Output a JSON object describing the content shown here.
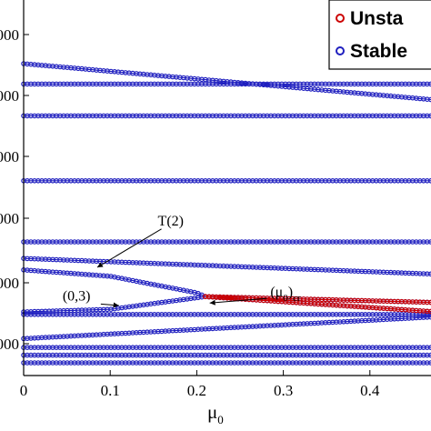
{
  "chart_data": {
    "type": "scatter",
    "title": "",
    "xlabel": "μ",
    "xlabel_subscript": "0",
    "ylabel": "",
    "xlim": [
      0,
      0.5
    ],
    "ylim": [
      -50,
      2900
    ],
    "x_ticks": [
      0,
      0.1,
      0.2,
      0.3,
      0.4
    ],
    "x_tick_labels": [
      "0",
      "0.1",
      "0.2",
      "0.3",
      "0.4"
    ],
    "y_ticks": [],
    "y_tick_labels": [
      "000",
      "000",
      "000",
      "000",
      "000",
      "000"
    ],
    "grid": false,
    "legend_position": "top-right",
    "legend": [
      {
        "label": "Unsta",
        "color": "#cc0000"
      },
      {
        "label": "Stable",
        "color": "#1f1fbf"
      }
    ],
    "series": [
      {
        "name": "Stable",
        "color": "#1f1fbf",
        "marker": "o",
        "curves": [
          {
            "x": [
              0,
              0.5
            ],
            "y": [
              2400,
              2100
            ]
          },
          {
            "x": [
              0,
              0.5
            ],
            "y": [
              2240,
              2240
            ]
          },
          {
            "x": [
              0,
              0.5
            ],
            "y": [
              1990,
              1990
            ]
          },
          {
            "x": [
              0,
              0.5
            ],
            "y": [
              1480,
              1480
            ]
          },
          {
            "x": [
              0,
              0.5
            ],
            "y": [
              1000,
              1000
            ]
          },
          {
            "x": [
              0,
              0.5
            ],
            "y": [
              870,
              740
            ]
          },
          {
            "x": [
              0,
              0.1,
              0.2,
              0.21
            ],
            "y": [
              780,
              730,
              600,
              570
            ]
          },
          {
            "x": [
              0.21,
              0.5
            ],
            "y": [
              570,
              520
            ]
          },
          {
            "x": [
              0,
              0.5
            ],
            "y": [
              430,
              430
            ]
          },
          {
            "x": [
              0,
              0.1,
              0.21
            ],
            "y": [
              450,
              470,
              570
            ]
          },
          {
            "x": [
              0.21,
              0.5
            ],
            "y": [
              570,
              440
            ]
          },
          {
            "x": [
              0,
              0.5
            ],
            "y": [
              240,
              420
            ]
          },
          {
            "x": [
              0,
              0.5
            ],
            "y": [
              170,
              170
            ]
          },
          {
            "x": [
              0,
              0.5
            ],
            "y": [
              110,
              110
            ]
          },
          {
            "x": [
              0,
              0.5
            ],
            "y": [
              50,
              50
            ]
          }
        ]
      },
      {
        "name": "Unsta",
        "color": "#cc0000",
        "marker": "o",
        "curves": [
          {
            "x": [
              0.21,
              0.5
            ],
            "y": [
              570,
              440
            ]
          },
          {
            "x": [
              0.21,
              0.5
            ],
            "y": [
              570,
              520
            ]
          }
        ]
      }
    ],
    "annotations": [
      {
        "text": "T(2)",
        "at": [
          0.155,
          1130
        ],
        "arrow_to": [
          0.085,
          800
        ]
      },
      {
        "text": "(0,3)",
        "at": [
          0.045,
          540
        ],
        "arrow_to": [
          0.11,
          500
        ]
      },
      {
        "text": "(μ",
        "sub": "0",
        "suffix": ")",
        "sub2": "cr",
        "at": [
          0.285,
          570
        ],
        "arrow_to": [
          0.215,
          520
        ]
      }
    ]
  }
}
